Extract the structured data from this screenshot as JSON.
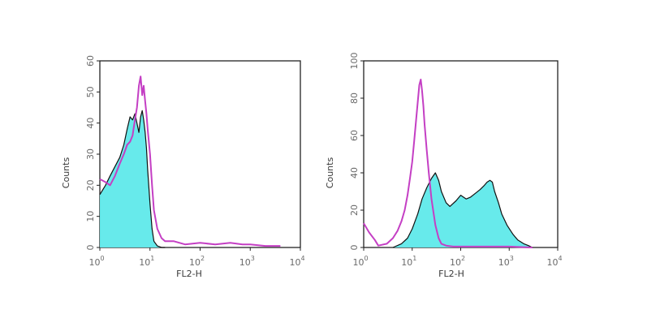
{
  "chart_data": [
    {
      "type": "area",
      "xscale": "log",
      "xlim": [
        1,
        10000
      ],
      "ylim": [
        0,
        60
      ],
      "xlabel": "FL2-H",
      "ylabel": "Counts",
      "x_ticks": [
        {
          "value": 1,
          "base": "10",
          "exp": "0"
        },
        {
          "value": 10,
          "base": "10",
          "exp": "1"
        },
        {
          "value": 100,
          "base": "10",
          "exp": "2"
        },
        {
          "value": 1000,
          "base": "10",
          "exp": "3"
        },
        {
          "value": 10000,
          "base": "10",
          "exp": "4"
        }
      ],
      "y_ticks": [
        "0",
        "10",
        "20",
        "30",
        "40",
        "50",
        "60"
      ],
      "series": [
        {
          "style": "filled",
          "fill": "#5fe9ea",
          "stroke": "#111111",
          "x": [
            1,
            1.3,
            1.6,
            2,
            2.5,
            3,
            3.5,
            4,
            4.5,
            5,
            5.5,
            6,
            6.5,
            7,
            7.5,
            8,
            8.5,
            9,
            10,
            11,
            12,
            14,
            17,
            20
          ],
          "y": [
            17,
            20,
            23,
            26,
            29,
            33,
            38,
            42,
            41,
            43,
            40,
            37,
            42,
            44,
            41,
            37,
            32,
            25,
            14,
            6,
            2,
            0.5,
            0,
            0
          ]
        },
        {
          "style": "line",
          "stroke": "#c43fc4",
          "x": [
            1,
            1.3,
            1.6,
            2,
            2.5,
            3,
            3.5,
            4,
            4.5,
            5,
            5.5,
            6,
            6.5,
            7,
            7.5,
            8,
            8.5,
            9,
            10,
            11,
            12,
            14,
            17,
            20,
            30,
            50,
            100,
            200,
            400,
            700,
            1000,
            2000,
            4000
          ],
          "y": [
            22,
            21,
            20,
            23,
            27,
            30,
            33,
            34,
            36,
            41,
            45,
            52,
            55,
            49,
            52,
            47,
            43,
            38,
            30,
            20,
            12,
            6,
            3,
            2,
            2,
            1,
            1.5,
            1,
            1.5,
            1,
            1,
            0.5,
            0.5
          ]
        }
      ]
    },
    {
      "type": "area",
      "xscale": "log",
      "xlim": [
        1,
        10000
      ],
      "ylim": [
        0,
        100
      ],
      "xlabel": "FL2-H",
      "ylabel": "Counts",
      "x_ticks": [
        {
          "value": 1,
          "base": "10",
          "exp": "0"
        },
        {
          "value": 10,
          "base": "10",
          "exp": "1"
        },
        {
          "value": 100,
          "base": "10",
          "exp": "2"
        },
        {
          "value": 1000,
          "base": "10",
          "exp": "3"
        },
        {
          "value": 10000,
          "base": "10",
          "exp": "4"
        }
      ],
      "y_ticks": [
        "0",
        "20",
        "40",
        "60",
        "80",
        "100"
      ],
      "series": [
        {
          "style": "filled",
          "fill": "#5fe9ea",
          "stroke": "#111111",
          "x": [
            4,
            6,
            8,
            10,
            13,
            16,
            20,
            25,
            30,
            35,
            40,
            50,
            60,
            80,
            100,
            130,
            160,
            200,
            250,
            300,
            350,
            400,
            450,
            500,
            600,
            700,
            900,
            1200,
            1500,
            2000,
            2500,
            3000
          ],
          "y": [
            0,
            2,
            5,
            10,
            18,
            26,
            32,
            37,
            40,
            36,
            30,
            24,
            22,
            25,
            28,
            26,
            27,
            29,
            31,
            33,
            35,
            36,
            35,
            30,
            24,
            18,
            12,
            7,
            4,
            2,
            1,
            0
          ]
        },
        {
          "style": "line",
          "stroke": "#c43fc4",
          "x": [
            1,
            1.3,
            1.7,
            2,
            3,
            4,
            5,
            6,
            7,
            8,
            9,
            10,
            11,
            12,
            13,
            14,
            15,
            16,
            17,
            18,
            20,
            22,
            25,
            30,
            35,
            40,
            50,
            70,
            100,
            200,
            500,
            1000,
            3000
          ],
          "y": [
            13,
            8,
            4,
            1,
            2,
            5,
            9,
            14,
            20,
            28,
            37,
            46,
            57,
            68,
            78,
            87,
            90,
            84,
            76,
            66,
            52,
            40,
            26,
            12,
            5,
            2,
            1,
            0.5,
            0.5,
            0.5,
            0.5,
            0.5,
            0
          ]
        }
      ]
    }
  ]
}
